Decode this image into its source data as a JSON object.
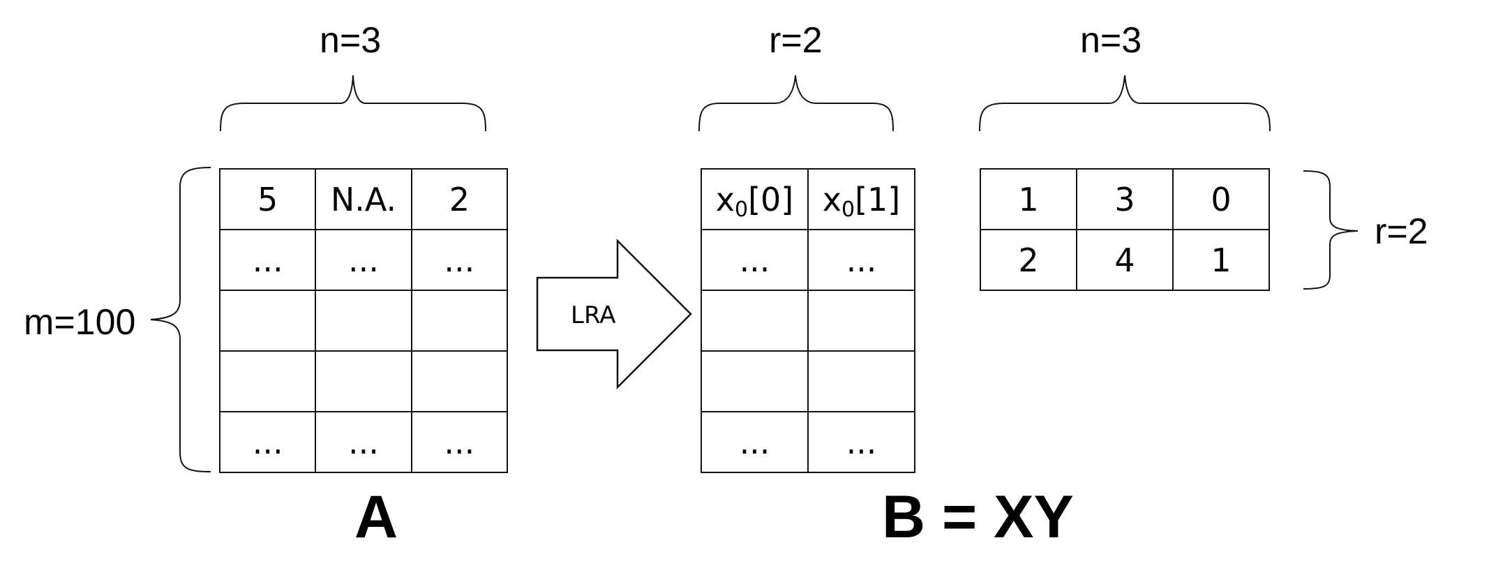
{
  "matrix_a": {
    "dim_top": "n=3",
    "dim_left": "m=100",
    "caption": "A",
    "rows": [
      [
        "5",
        "N.A.",
        "2"
      ],
      [
        "...",
        "...",
        "..."
      ],
      [
        "",
        "",
        ""
      ],
      [
        "",
        "",
        ""
      ],
      [
        "...",
        "...",
        "..."
      ]
    ]
  },
  "arrow": {
    "label": "LRA"
  },
  "matrix_x": {
    "dim_top": "r=2",
    "header": [
      {
        "base": "x",
        "sub": "0",
        "rest": "[0]"
      },
      {
        "base": "x",
        "sub": "0",
        "rest": "[1]"
      }
    ],
    "rows": [
      [
        "...",
        "..."
      ],
      [
        "",
        ""
      ],
      [
        "",
        ""
      ],
      [
        "...",
        "..."
      ]
    ]
  },
  "matrix_y": {
    "dim_top": "n=3",
    "dim_right": "r=2",
    "rows": [
      [
        "1",
        "3",
        "0"
      ],
      [
        "2",
        "4",
        "1"
      ]
    ]
  },
  "caption_b": "B = XY"
}
